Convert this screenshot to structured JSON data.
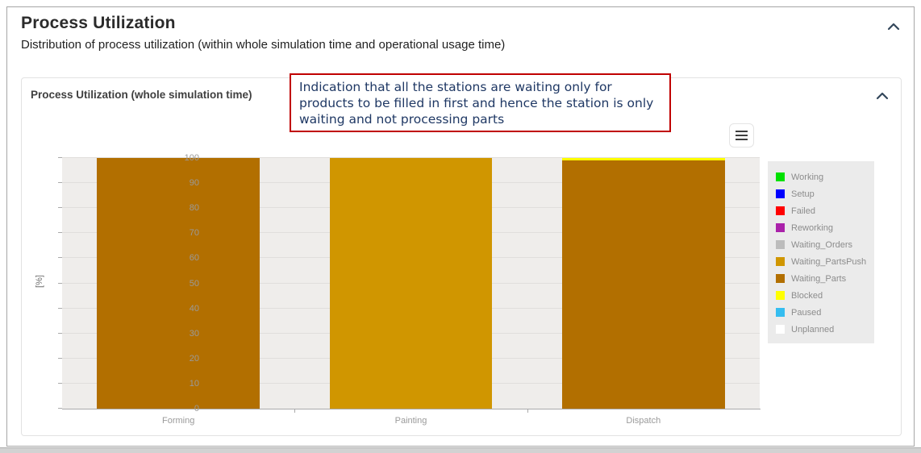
{
  "page": {
    "title": "Process Utilization",
    "subtitle": "Distribution of process utilization (within whole simulation time and operational usage time)"
  },
  "card": {
    "title": "Process Utilization (whole simulation time)"
  },
  "annotation": {
    "text": "Indication that all the stations are waiting only for products to be filled in first and hence the station is only waiting and not processing parts",
    "border_color": "#c00000",
    "text_color": "#1f3864"
  },
  "chart_data": {
    "type": "bar",
    "stacked": true,
    "title": "Process Utilization (whole simulation time)",
    "categories": [
      "Forming",
      "Painting",
      "Dispatch"
    ],
    "series": [
      {
        "name": "Working",
        "color": "#00e100",
        "values": [
          0,
          0,
          0
        ]
      },
      {
        "name": "Setup",
        "color": "#0000ff",
        "values": [
          0,
          0,
          0
        ]
      },
      {
        "name": "Failed",
        "color": "#ff0000",
        "values": [
          0,
          0,
          0
        ]
      },
      {
        "name": "Reworking",
        "color": "#aa22aa",
        "values": [
          0,
          0,
          0
        ]
      },
      {
        "name": "Waiting_Orders",
        "color": "#bcbcbc",
        "values": [
          0,
          0,
          0
        ]
      },
      {
        "name": "Waiting_PartsPush",
        "color": "#d09600",
        "values": [
          0,
          100,
          0
        ]
      },
      {
        "name": "Waiting_Parts",
        "color": "#b26f00",
        "values": [
          100,
          0,
          99
        ]
      },
      {
        "name": "Blocked",
        "color": "#ffff00",
        "values": [
          0,
          0,
          1
        ]
      },
      {
        "name": "Paused",
        "color": "#35bdf0",
        "values": [
          0,
          0,
          0
        ]
      },
      {
        "name": "Unplanned",
        "color": "#ffffff",
        "values": [
          0,
          0,
          0
        ]
      }
    ],
    "xlabel": "",
    "ylabel": "[%]",
    "ylim": [
      0,
      100
    ],
    "y_ticks": [
      0,
      10,
      20,
      30,
      40,
      50,
      60,
      70,
      80,
      90,
      100
    ],
    "grid": true,
    "legend_position": "right",
    "plot_background": "#efedeb"
  }
}
